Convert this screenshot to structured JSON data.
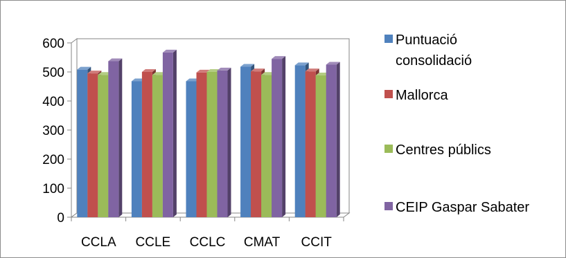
{
  "chart_data": {
    "type": "bar",
    "title": "",
    "xlabel": "",
    "ylabel": "",
    "categories": [
      "CCLA",
      "CCLE",
      "CCLC",
      "CMAT",
      "CCIT"
    ],
    "ylim": [
      0,
      600
    ],
    "yticks": [
      0,
      100,
      200,
      300,
      400,
      500,
      600
    ],
    "grid": false,
    "legend_position": "right",
    "series": [
      {
        "name": "Puntuació consolidació",
        "name_lines": [
          "Puntuació",
          "consolidació"
        ],
        "color": "#4f81bd",
        "values": [
          508,
          468,
          468,
          518,
          523
        ]
      },
      {
        "name": "Mallorca",
        "name_lines": [
          "Mallorca"
        ],
        "color": "#c0504d",
        "values": [
          495,
          500,
          498,
          502,
          502
        ]
      },
      {
        "name": "Centres públics",
        "name_lines": [
          "Centres públics"
        ],
        "color": "#9bbb59",
        "values": [
          490,
          490,
          500,
          490,
          488
        ]
      },
      {
        "name": "CEIP Gaspar Sabater",
        "name_lines": [
          "CEIP Gaspar Sabater"
        ],
        "color": "#8064a2",
        "values": [
          537,
          567,
          505,
          545,
          525
        ]
      }
    ]
  }
}
